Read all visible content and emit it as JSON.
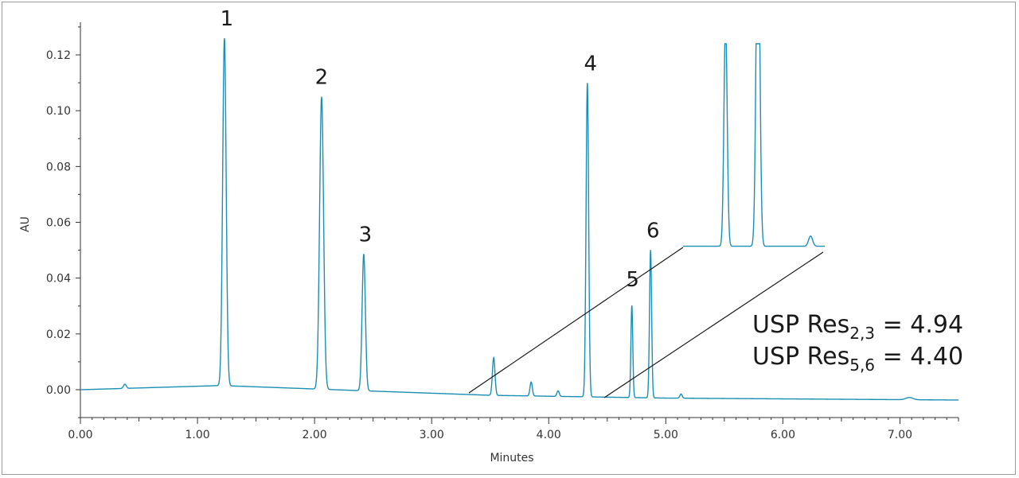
{
  "chart_data": {
    "type": "line",
    "title": "",
    "xlabel": "Minutes",
    "ylabel": "AU",
    "xlim": [
      0.0,
      7.5
    ],
    "ylim": [
      -0.01,
      0.13
    ],
    "x_ticks": [
      "0.00",
      "1.00",
      "2.00",
      "3.00",
      "4.00",
      "5.00",
      "6.00",
      "7.00"
    ],
    "y_ticks": [
      "0.00",
      "0.02",
      "0.04",
      "0.06",
      "0.08",
      "0.10",
      "0.12"
    ],
    "grid": false,
    "line_color": "#1a8fb4",
    "baseline": [
      {
        "x": 0.0,
        "y": 0.0
      },
      {
        "x": 1.2,
        "y": 0.0015
      },
      {
        "x": 2.5,
        "y": -0.0005
      },
      {
        "x": 3.5,
        "y": -0.002
      },
      {
        "x": 5.0,
        "y": -0.003
      },
      {
        "x": 7.5,
        "y": -0.0037
      }
    ],
    "peaks": [
      {
        "label": "",
        "rt": 0.38,
        "height": 0.0015,
        "width": 0.012
      },
      {
        "label": "1",
        "rt": 1.23,
        "height": 0.1245,
        "width": 0.015
      },
      {
        "label": "2",
        "rt": 2.06,
        "height": 0.1048,
        "width": 0.017
      },
      {
        "label": "3",
        "rt": 2.42,
        "height": 0.049,
        "width": 0.014
      },
      {
        "label": "",
        "rt": 3.53,
        "height": 0.0135,
        "width": 0.011
      },
      {
        "label": "",
        "rt": 3.85,
        "height": 0.005,
        "width": 0.01
      },
      {
        "label": "",
        "rt": 4.08,
        "height": 0.002,
        "width": 0.01
      },
      {
        "label": "4",
        "rt": 4.33,
        "height": 0.1125,
        "width": 0.011
      },
      {
        "label": "5",
        "rt": 4.71,
        "height": 0.033,
        "width": 0.008
      },
      {
        "label": "6",
        "rt": 4.87,
        "height": 0.053,
        "width": 0.009
      },
      {
        "label": "",
        "rt": 5.13,
        "height": 0.0015,
        "width": 0.01
      },
      {
        "label": "",
        "rt": 7.08,
        "height": 0.0008,
        "width": 0.03
      }
    ],
    "inset": {
      "description_of_content": "zoomed region 4.5-5.2 min",
      "x_range": [
        4.5,
        5.2
      ],
      "peaks_rt": [
        4.71,
        4.87
      ]
    },
    "annotations": {
      "res1_main": "USP Res",
      "res1_sub": "2,3",
      "res1_value": " = 4.94",
      "res2_main": "USP Res",
      "res2_sub": "5,6",
      "res2_value": " = 4.40"
    }
  }
}
